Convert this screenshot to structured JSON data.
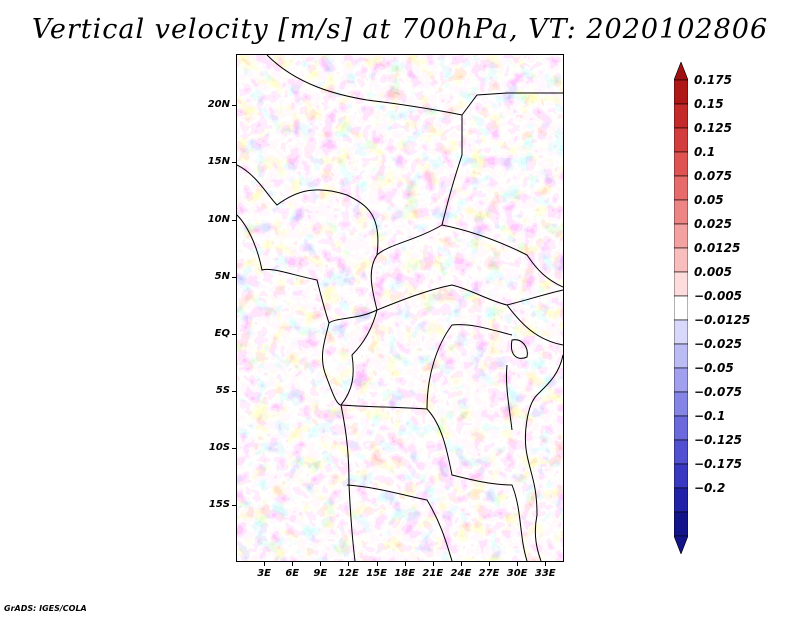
{
  "title": "Vertical velocity [m/s] at 700hPa, VT: 2020102806",
  "credit": "GrADS: IGES/COLA",
  "map": {
    "lat_range": [
      -20,
      24.5
    ],
    "lon_range": [
      0,
      35
    ],
    "lat_labels": [
      {
        "value": 20,
        "text": "20N"
      },
      {
        "value": 15,
        "text": "15N"
      },
      {
        "value": 10,
        "text": "10N"
      },
      {
        "value": 5,
        "text": "5N"
      },
      {
        "value": 0,
        "text": "EQ"
      },
      {
        "value": -5,
        "text": "5S"
      },
      {
        "value": -10,
        "text": "10S"
      },
      {
        "value": -15,
        "text": "15S"
      }
    ],
    "lon_labels": [
      {
        "value": 3,
        "text": "3E"
      },
      {
        "value": 6,
        "text": "6E"
      },
      {
        "value": 9,
        "text": "9E"
      },
      {
        "value": 12,
        "text": "12E"
      },
      {
        "value": 15,
        "text": "15E"
      },
      {
        "value": 18,
        "text": "18E"
      },
      {
        "value": 21,
        "text": "21E"
      },
      {
        "value": 24,
        "text": "24E"
      },
      {
        "value": 27,
        "text": "27E"
      },
      {
        "value": 30,
        "text": "30E"
      },
      {
        "value": 33,
        "text": "33E"
      }
    ]
  },
  "colorbar": {
    "levels": [
      {
        "text": "0.175",
        "color": "#b01818"
      },
      {
        "text": "0.15",
        "color": "#c42a2a"
      },
      {
        "text": "0.125",
        "color": "#d43d3d"
      },
      {
        "text": "0.1",
        "color": "#e05353"
      },
      {
        "text": "0.075",
        "color": "#e86b6b"
      },
      {
        "text": "0.05",
        "color": "#ee8585"
      },
      {
        "text": "0.025",
        "color": "#f4a1a1"
      },
      {
        "text": "0.0125",
        "color": "#f8bdbd"
      },
      {
        "text": "0.005",
        "color": "#fcdcdc"
      },
      {
        "text": "−0.005",
        "color": "#ffffff"
      },
      {
        "text": "−0.0125",
        "color": "#d8d8fa"
      },
      {
        "text": "−0.025",
        "color": "#bcbcf4"
      },
      {
        "text": "−0.05",
        "color": "#a0a0ee"
      },
      {
        "text": "−0.075",
        "color": "#8585e6"
      },
      {
        "text": "−0.1",
        "color": "#6a6add"
      },
      {
        "text": "−0.125",
        "color": "#5050d0"
      },
      {
        "text": "−0.175",
        "color": "#3838c0"
      },
      {
        "text": "−0.2",
        "color": "#2222a8"
      }
    ],
    "top_color": "#a01010",
    "bottom_color": "#14148a"
  }
}
